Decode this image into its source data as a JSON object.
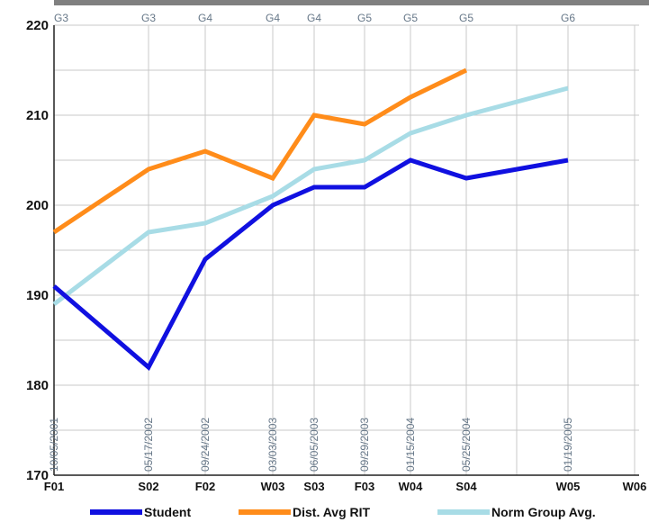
{
  "chart_data": {
    "type": "line",
    "title": "",
    "xlabel": "",
    "ylabel": "",
    "ylim": [
      170,
      220
    ],
    "yticks": [
      170,
      180,
      190,
      200,
      210,
      220
    ],
    "grid": "on",
    "x_slots": [
      {
        "label": "F01",
        "date": "10/05/2001",
        "grade": "G3"
      },
      {
        "label": "S02",
        "date": "05/17/2002",
        "grade": "G3"
      },
      {
        "label": "F02",
        "date": "09/24/2002",
        "grade": "G4"
      },
      {
        "label": "W03",
        "date": "03/03/2003",
        "grade": "G4"
      },
      {
        "label": "S03",
        "date": "06/05/2003",
        "grade": "G4"
      },
      {
        "label": "F03",
        "date": "09/29/2003",
        "grade": "G5"
      },
      {
        "label": "W04",
        "date": "01/15/2004",
        "grade": "G5"
      },
      {
        "label": "S04",
        "date": "05/25/2004",
        "grade": "G5"
      },
      {
        "label": "",
        "date": "",
        "grade": ""
      },
      {
        "label": "W05",
        "date": "01/19/2005",
        "grade": "G6"
      },
      {
        "label": "W06",
        "date": "",
        "grade": ""
      }
    ],
    "series": [
      {
        "name": "Student",
        "color": "#1010e0",
        "points": [
          [
            0,
            191
          ],
          [
            1,
            182
          ],
          [
            2,
            194
          ],
          [
            3,
            200
          ],
          [
            4,
            202
          ],
          [
            5,
            202
          ],
          [
            6,
            205
          ],
          [
            7,
            203
          ],
          [
            9,
            205
          ]
        ]
      },
      {
        "name": "Dist. Avg RIT",
        "color": "#ff8c1a",
        "points": [
          [
            0,
            197
          ],
          [
            1,
            204
          ],
          [
            2,
            206
          ],
          [
            3,
            203
          ],
          [
            4,
            210
          ],
          [
            5,
            209
          ],
          [
            6,
            212
          ],
          [
            7,
            215
          ]
        ]
      },
      {
        "name": "Norm Group Avg.",
        "color": "#a8dce6",
        "points": [
          [
            0,
            189
          ],
          [
            1,
            197
          ],
          [
            2,
            198
          ],
          [
            3,
            201
          ],
          [
            4,
            204
          ],
          [
            5,
            205
          ],
          [
            6,
            208
          ],
          [
            7,
            210
          ],
          [
            9,
            213
          ]
        ]
      }
    ],
    "legend_position": "bottom"
  }
}
